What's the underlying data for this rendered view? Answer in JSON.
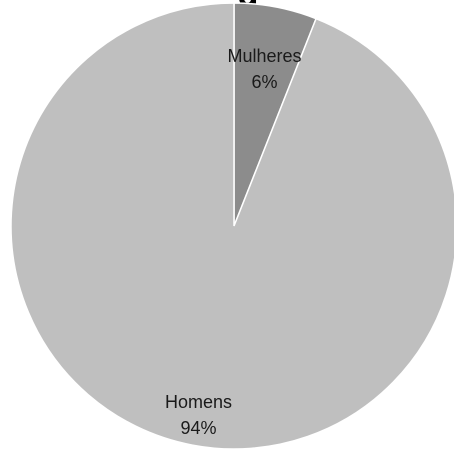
{
  "chart_data": {
    "type": "pie",
    "title_fragment": "g",
    "slices": [
      {
        "label": "Mulheres",
        "value": 6,
        "value_label": "6%",
        "color": "#8c8c8c"
      },
      {
        "label": "Homens",
        "value": 94,
        "value_label": "94%",
        "color": "#bfbfbf"
      }
    ],
    "start_angle_deg": 0,
    "direction": "clockwise",
    "edge_color": "#ffffff",
    "legend": "none"
  }
}
